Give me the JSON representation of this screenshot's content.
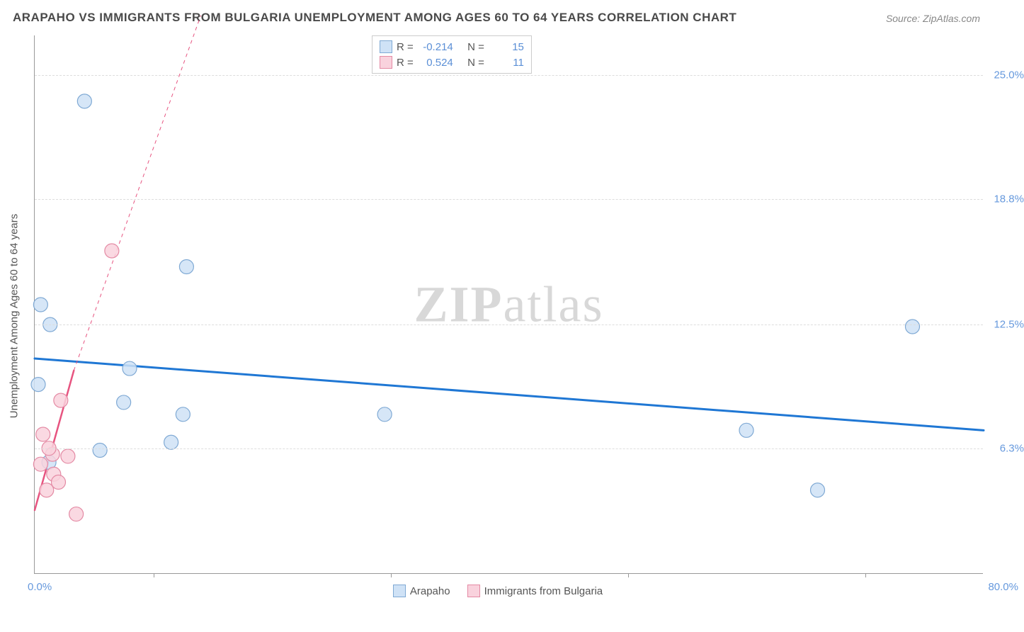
{
  "title": "ARAPAHO VS IMMIGRANTS FROM BULGARIA UNEMPLOYMENT AMONG AGES 60 TO 64 YEARS CORRELATION CHART",
  "source": "Source: ZipAtlas.com",
  "watermark": {
    "bold": "ZIP",
    "rest": "atlas"
  },
  "ylabel": "Unemployment Among Ages 60 to 64 years",
  "chart": {
    "type": "scatter",
    "background_color": "#ffffff",
    "grid_color": "#dddddd",
    "axis_color": "#999999",
    "tick_label_color": "#6699dd",
    "xlim": [
      0,
      80
    ],
    "ylim": [
      0,
      27
    ],
    "xaxis": {
      "min_label": "0.0%",
      "max_label": "80.0%",
      "ticks": [
        10,
        30,
        50,
        70
      ]
    },
    "yticks": [
      {
        "value": 6.3,
        "label": "6.3%"
      },
      {
        "value": 12.5,
        "label": "12.5%"
      },
      {
        "value": 18.8,
        "label": "18.8%"
      },
      {
        "value": 25.0,
        "label": "25.0%"
      }
    ],
    "marker_radius": 10,
    "series": [
      {
        "name": "Arapaho",
        "key": "arapaho",
        "fill": "#cfe2f6",
        "stroke": "#7fa9d4",
        "R": "-0.214",
        "N": "15",
        "trend": {
          "p1": {
            "x": 0,
            "y": 10.8
          },
          "p2": {
            "x": 80,
            "y": 7.2
          },
          "color": "#1f77d4",
          "width": 3
        },
        "points": [
          {
            "x": 0.5,
            "y": 13.5
          },
          {
            "x": 1.3,
            "y": 12.5
          },
          {
            "x": 0.3,
            "y": 9.5
          },
          {
            "x": 8.0,
            "y": 10.3
          },
          {
            "x": 1.2,
            "y": 5.6
          },
          {
            "x": 5.5,
            "y": 6.2
          },
          {
            "x": 7.5,
            "y": 8.6
          },
          {
            "x": 12.5,
            "y": 8.0
          },
          {
            "x": 11.5,
            "y": 6.6
          },
          {
            "x": 12.8,
            "y": 15.4
          },
          {
            "x": 4.2,
            "y": 23.7
          },
          {
            "x": 29.5,
            "y": 8.0
          },
          {
            "x": 60.0,
            "y": 7.2
          },
          {
            "x": 66.0,
            "y": 4.2
          },
          {
            "x": 74.0,
            "y": 12.4
          }
        ]
      },
      {
        "name": "Immigrants from Bulgaria",
        "key": "bulgaria",
        "fill": "#f9d2dd",
        "stroke": "#e48aa4",
        "R": "0.524",
        "N": "11",
        "trend": {
          "p1": {
            "x": 0.0,
            "y": 3.2
          },
          "p2": {
            "x": 3.3,
            "y": 10.2
          },
          "extend": {
            "x": 14.0,
            "y": 28.0
          },
          "color": "#e75480",
          "width": 2.5
        },
        "points": [
          {
            "x": 0.5,
            "y": 5.5
          },
          {
            "x": 1.6,
            "y": 5.0
          },
          {
            "x": 1.0,
            "y": 4.2
          },
          {
            "x": 2.0,
            "y": 4.6
          },
          {
            "x": 1.5,
            "y": 6.0
          },
          {
            "x": 0.7,
            "y": 7.0
          },
          {
            "x": 1.2,
            "y": 6.3
          },
          {
            "x": 2.2,
            "y": 8.7
          },
          {
            "x": 2.8,
            "y": 5.9
          },
          {
            "x": 3.5,
            "y": 3.0
          },
          {
            "x": 6.5,
            "y": 16.2
          }
        ]
      }
    ]
  },
  "legend_top": {
    "r_label": "R =",
    "n_label": "N ="
  },
  "legend_bottom": [
    {
      "label": "Arapaho",
      "fill": "#cfe2f6",
      "stroke": "#7fa9d4"
    },
    {
      "label": "Immigrants from Bulgaria",
      "fill": "#f9d2dd",
      "stroke": "#e48aa4"
    }
  ]
}
